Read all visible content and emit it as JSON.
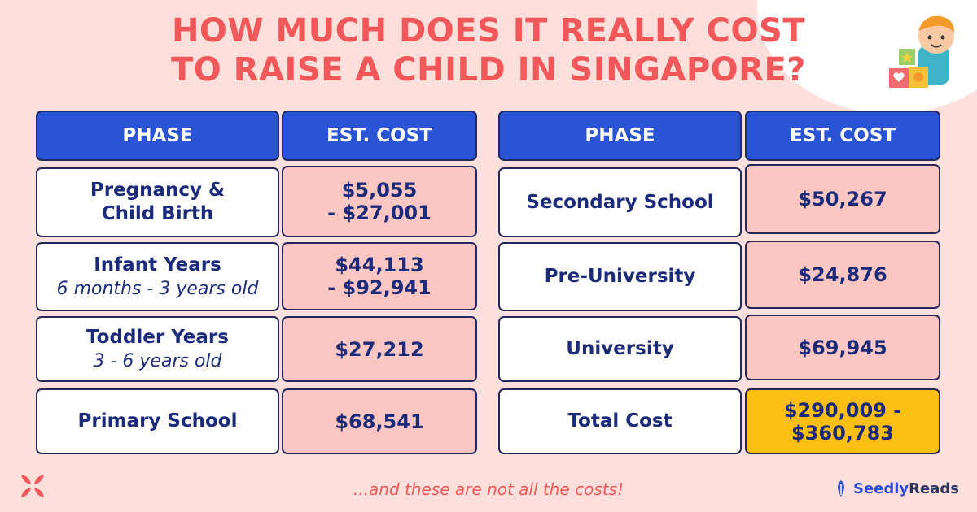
{
  "title": {
    "line1": "HOW MUCH DOES IT REALLY COST",
    "line2": "TO RAISE A CHILD IN SINGAPORE?"
  },
  "left_table": {
    "headers": [
      "PHASE",
      "EST. COST"
    ],
    "rows": [
      {
        "phase": "Pregnancy &",
        "phase2": "Child Birth",
        "cost1": "$5,055",
        "cost2": "- $27,001"
      },
      {
        "phase": "Infant Years",
        "sub": "6 months - 3 years old",
        "cost1": "$44,113",
        "cost2": "- $92,941"
      },
      {
        "phase": "Toddler Years",
        "sub": "3 - 6 years old",
        "cost1": "$27,212"
      },
      {
        "phase": "Primary School",
        "cost1": "$68,541"
      }
    ]
  },
  "right_table": {
    "headers": [
      "PHASE",
      "EST. COST"
    ],
    "rows": [
      {
        "phase": "Secondary School",
        "cost1": "$50,267"
      },
      {
        "phase": "Pre-University",
        "cost1": "$24,876"
      },
      {
        "phase": "University",
        "cost1": "$69,945"
      },
      {
        "phase": "Total Cost",
        "cost1": "$290,009 -",
        "cost2": "$360,783"
      }
    ]
  },
  "footer": {
    "note": "...and these are not all the costs!",
    "brand_part1": "Seedly",
    "brand_part2": "Reads"
  },
  "colors": {
    "background": "#fde0dc",
    "title": "#f2585a",
    "header": "#2954d6",
    "cost_cell": "#fcc7c2",
    "total_cell": "#fbbf14",
    "text": "#1c2a7a"
  },
  "icons": [
    "child-with-blocks-illustration",
    "seedly-x-logo-icon",
    "seedly-leaf-icon"
  ]
}
